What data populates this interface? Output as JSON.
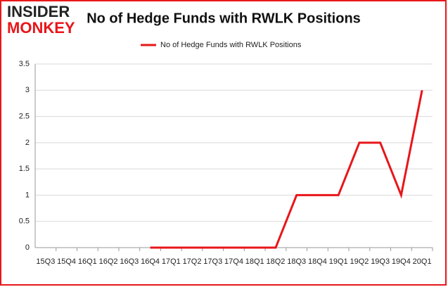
{
  "logo": {
    "line1": "INSIDER",
    "line2": "MONKEY"
  },
  "chart_data": {
    "type": "line",
    "title": "No of Hedge Funds with RWLK Positions",
    "categories": [
      "15Q3",
      "15Q4",
      "16Q1",
      "16Q2",
      "16Q3",
      "16Q4",
      "17Q1",
      "17Q2",
      "17Q3",
      "17Q4",
      "18Q1",
      "18Q2",
      "18Q3",
      "18Q4",
      "19Q1",
      "19Q2",
      "19Q3",
      "19Q4",
      "20Q1"
    ],
    "series": [
      {
        "name": "No of Hedge Funds with RWLK Positions",
        "color": "#e8161a",
        "values": [
          null,
          null,
          null,
          null,
          null,
          0,
          0,
          0,
          0,
          0,
          0,
          0,
          1,
          1,
          1,
          2,
          2,
          1,
          3
        ]
      }
    ],
    "ylim": [
      0,
      3.5
    ],
    "yticks": [
      0,
      0.5,
      1,
      1.5,
      2,
      2.5,
      3,
      3.5
    ],
    "grid": true,
    "legend": "top"
  }
}
